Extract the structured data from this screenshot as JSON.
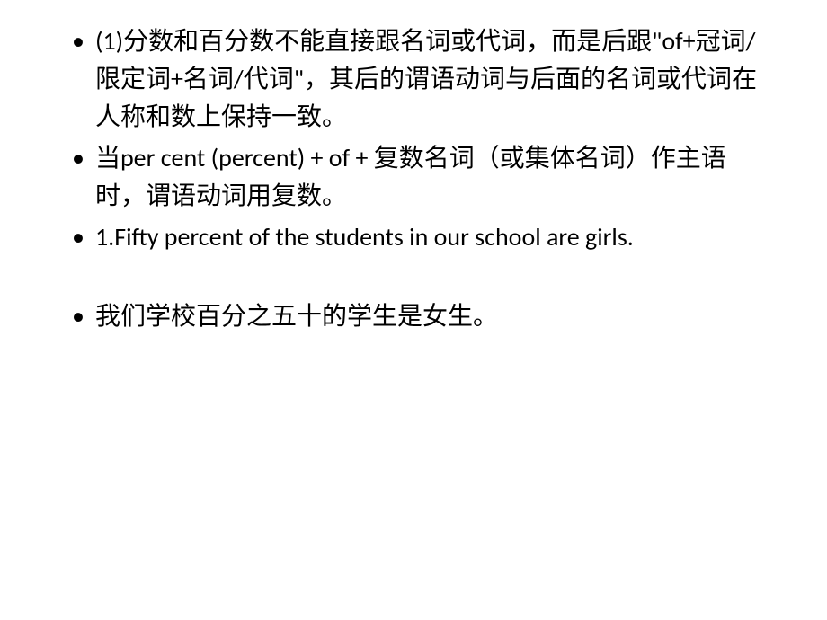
{
  "slide": {
    "background_color": "#ffffff",
    "text_color": "#000000",
    "font_size": 28,
    "line_height": 1.5,
    "bullet_char": "•",
    "bullets": [
      {
        "text": "(1)分数和百分数不能直接跟名词或代词，而是后跟\"of+冠词/限定词+名词/代词\"，其后的谓语动词与后面的名词或代词在人称和数上保持一致。"
      },
      {
        "text": "当per cent (percent) + of + 复数名词（或集体名词）作主语时，谓语动词用复数。"
      },
      {
        "text": "1.Fifty percent of the students in our school are girls."
      },
      {
        "text": "我们学校百分之五十的学生是女生。",
        "gap_before": true
      }
    ]
  }
}
